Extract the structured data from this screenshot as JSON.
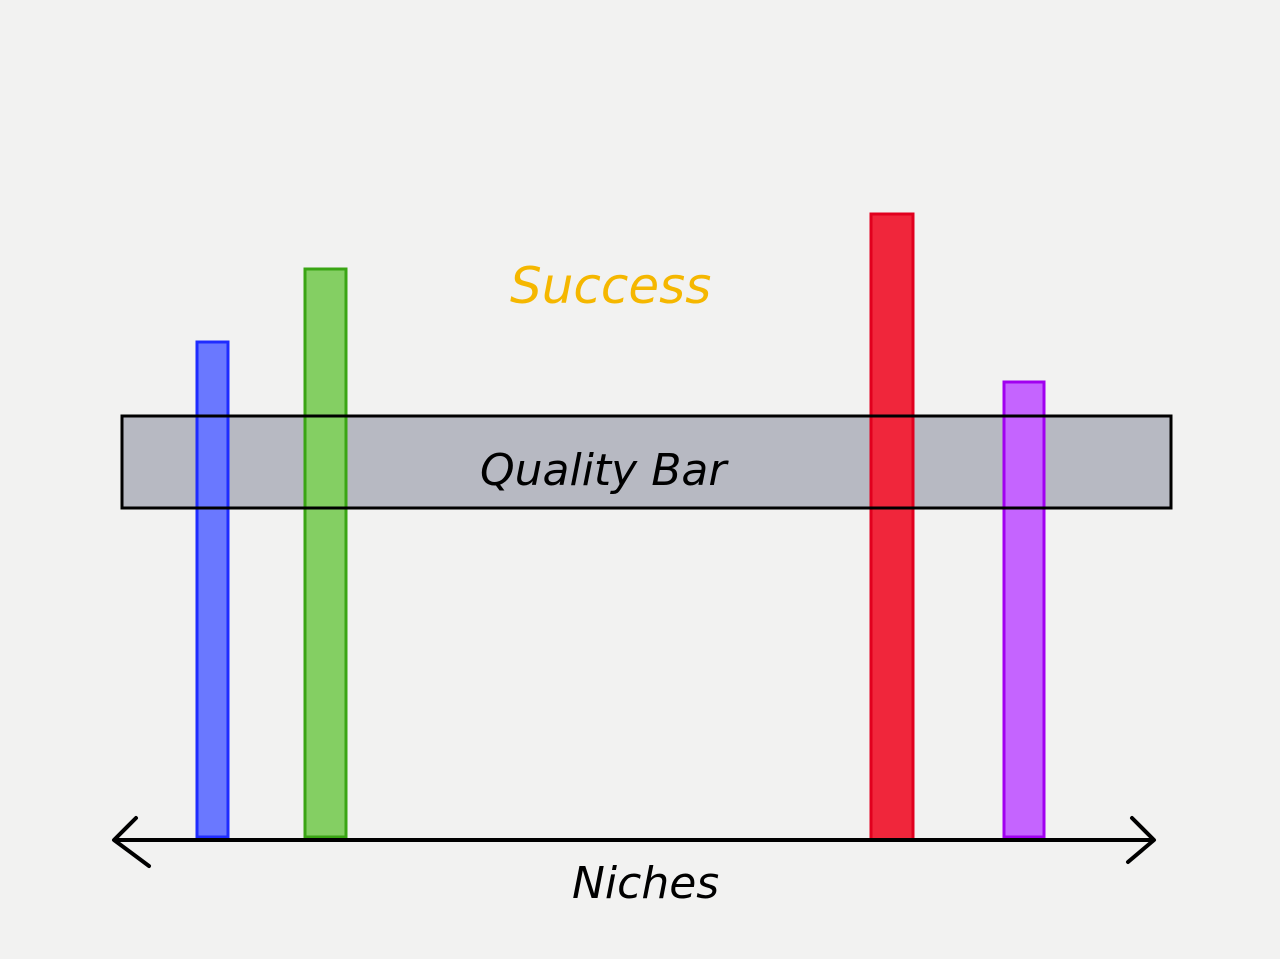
{
  "diagram": {
    "success_label": "Success",
    "quality_bar_label": "Quality Bar",
    "axis_label": "Niches",
    "colors": {
      "background": "#f2f2f1",
      "success_text": "#f5b700",
      "quality_bar_fill": "#b7b9c2",
      "outline": "#000000"
    },
    "niches": [
      {
        "id": "blue",
        "fill": "#6a78ff",
        "stroke": "#1f2cff"
      },
      {
        "id": "green",
        "fill": "#84cf63",
        "stroke": "#3aa514"
      },
      {
        "id": "red",
        "fill": "#f0263b",
        "stroke": "#e1001e"
      },
      {
        "id": "purple",
        "fill": "#c564ff",
        "stroke": "#a100f0"
      }
    ]
  }
}
